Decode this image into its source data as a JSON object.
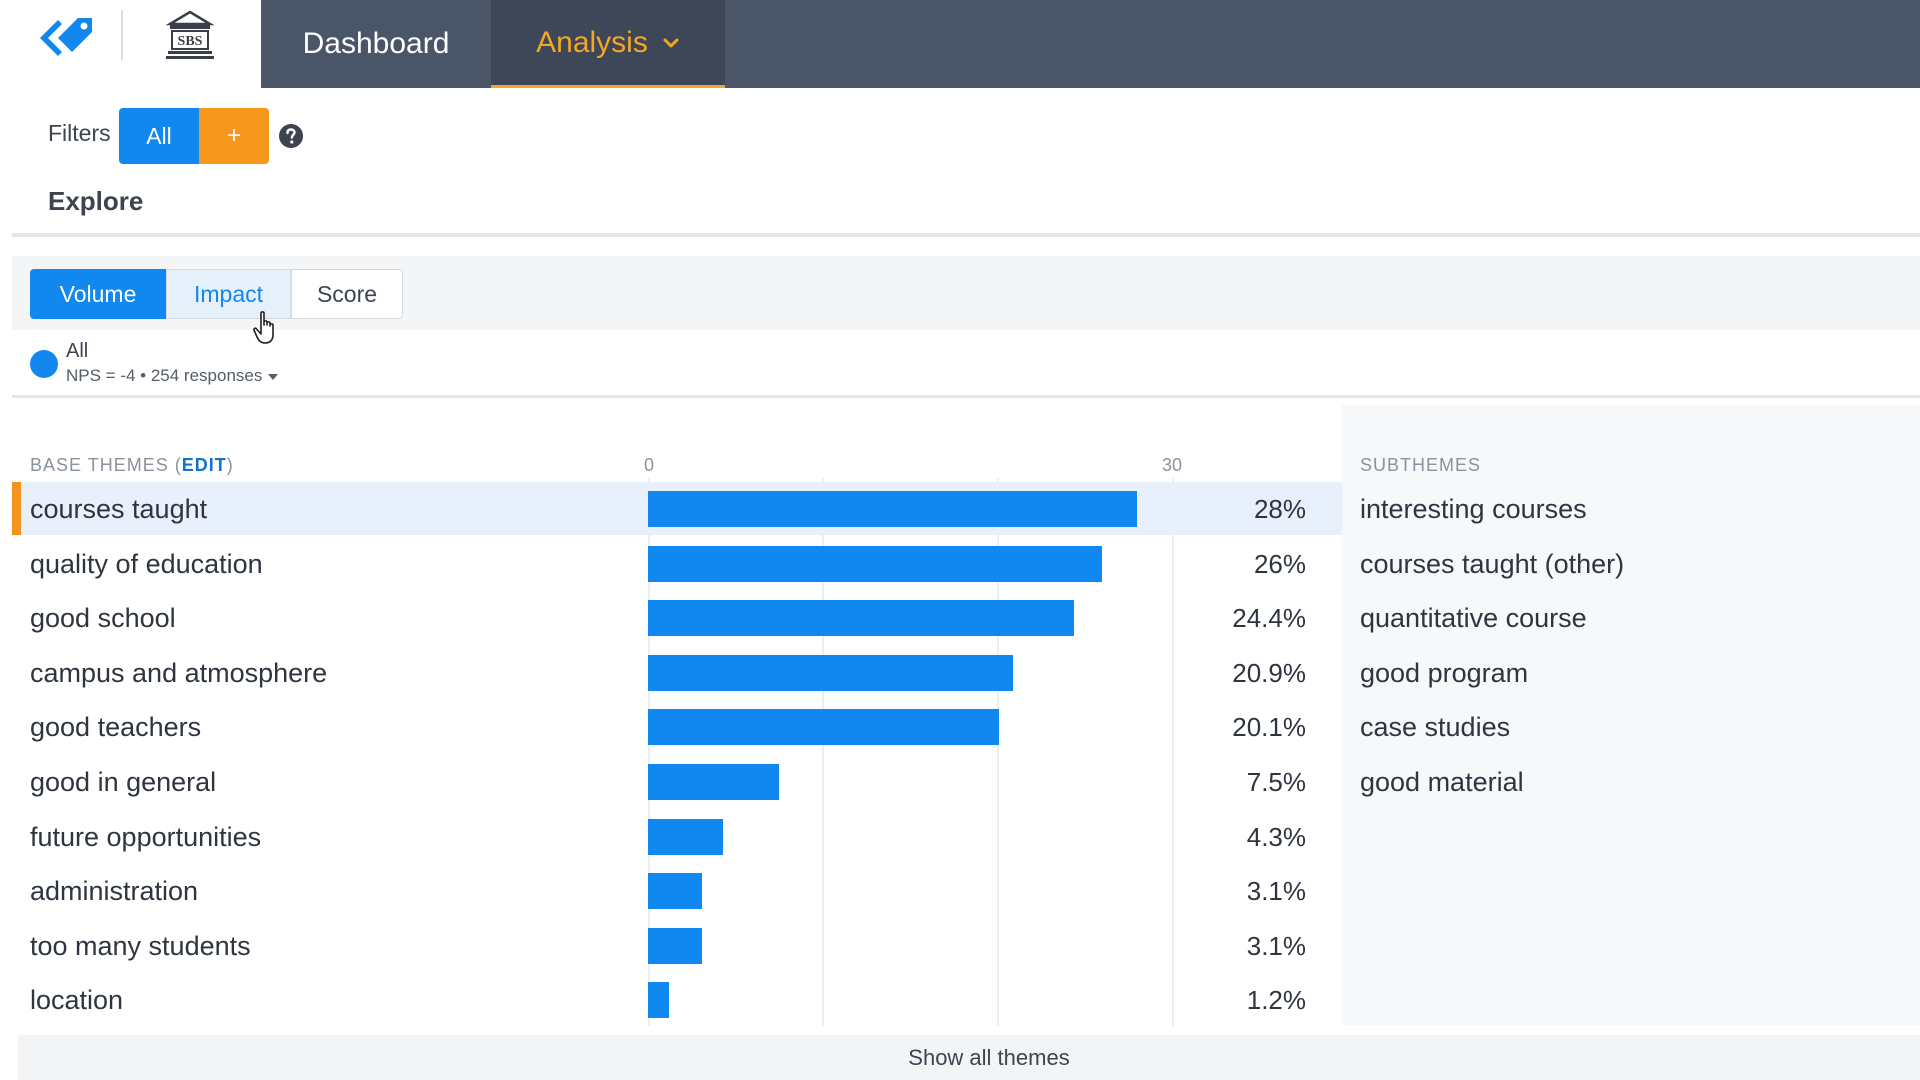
{
  "nav": {
    "tabs": [
      {
        "label": "Dashboard"
      },
      {
        "label": "Analysis"
      }
    ],
    "school_logo_text": "SBS"
  },
  "filters": {
    "label": "Filters",
    "all_label": "All",
    "add_label": "+"
  },
  "explore": {
    "title": "Explore"
  },
  "view_tabs": [
    {
      "label": "Volume",
      "selected": true
    },
    {
      "label": "Impact",
      "selected": false
    },
    {
      "label": "Score",
      "selected": false
    }
  ],
  "series": {
    "name": "All",
    "meta": "NPS = -4 • 254 responses",
    "color": "#1187f0"
  },
  "themes_header": {
    "label": "BASE THEMES",
    "edit_label": "EDIT"
  },
  "chart_data": {
    "type": "bar",
    "orientation": "horizontal",
    "xlim": [
      0,
      30
    ],
    "tick_labels": [
      "0",
      "30"
    ],
    "categories": [
      "courses taught",
      "quality of education",
      "good school",
      "campus and atmosphere",
      "good teachers",
      "good in general",
      "future opportunities",
      "administration",
      "too many students",
      "location"
    ],
    "values": [
      28,
      26,
      24.4,
      20.9,
      20.1,
      7.5,
      4.3,
      3.1,
      3.1,
      1.2
    ],
    "value_labels": [
      "28%",
      "26%",
      "24.4%",
      "20.9%",
      "20.1%",
      "7.5%",
      "4.3%",
      "3.1%",
      "3.1%",
      "1.2%"
    ],
    "selected_index": 0,
    "bar_color": "#1187f0"
  },
  "subthemes": {
    "label": "SUBTHEMES",
    "items": [
      "interesting courses",
      "courses taught (other)",
      "quantitative course",
      "good program",
      "case studies",
      "good material"
    ]
  },
  "footer": {
    "show_all_label": "Show all themes"
  },
  "colors": {
    "accent": "#1187f0",
    "orange": "#f7981d",
    "topbar": "#4a5568"
  }
}
